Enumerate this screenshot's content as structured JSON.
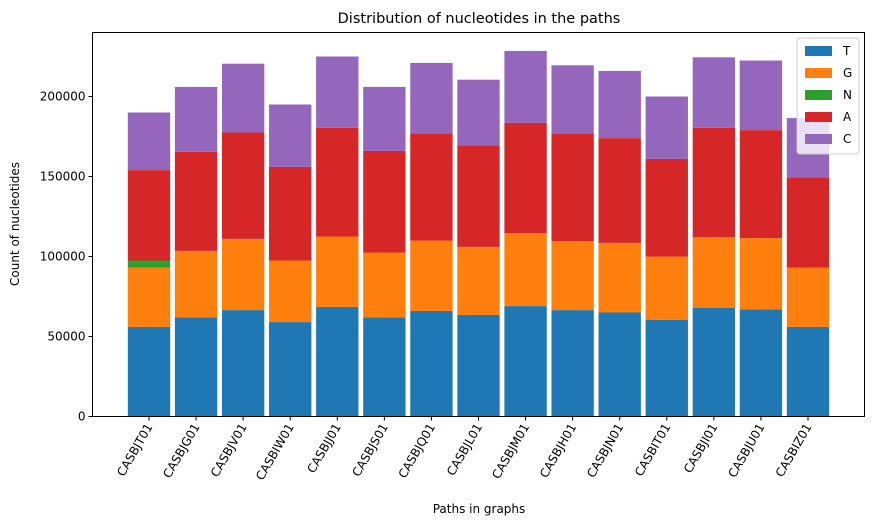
{
  "chart_data": {
    "type": "bar",
    "stacked": true,
    "title": "Distribution of nucleotides in the paths",
    "xlabel": "Paths in graphs",
    "ylabel": "Count of nucleotides",
    "ylim": [
      0,
      240000
    ],
    "yticks": [
      0,
      50000,
      100000,
      150000,
      200000
    ],
    "yticklabels": [
      "0",
      "50000",
      "100000",
      "150000",
      "200000"
    ],
    "grid": false,
    "legend_position": "top-right",
    "categories": [
      "CASBJT01",
      "CASBJG01",
      "CASBJV01",
      "CASBIW01",
      "CASBJJ01",
      "CASBJS01",
      "CASBJQ01",
      "CASBJL01",
      "CASBJM01",
      "CASBJH01",
      "CASBJN01",
      "CASBIT01",
      "CASBJI01",
      "CASBJU01",
      "CASBIZ01"
    ],
    "series": [
      {
        "name": "T",
        "color": "#1f77b4",
        "values": [
          56000,
          62000,
          66500,
          59000,
          68500,
          62000,
          66000,
          63500,
          69000,
          66500,
          65000,
          60500,
          68000,
          67000,
          56000
        ]
      },
      {
        "name": "G",
        "color": "#ff7f0e",
        "values": [
          37000,
          41500,
          44500,
          38500,
          44000,
          40500,
          44000,
          42500,
          45500,
          43000,
          43500,
          39500,
          44000,
          44500,
          37000
        ]
      },
      {
        "name": "N",
        "color": "#2ca02c",
        "values": [
          4500,
          0,
          0,
          0,
          0,
          0,
          0,
          0,
          0,
          0,
          0,
          0,
          0,
          0,
          0
        ]
      },
      {
        "name": "A",
        "color": "#d62728",
        "values": [
          56500,
          62000,
          66500,
          58500,
          68000,
          63500,
          67000,
          63500,
          69000,
          67500,
          65500,
          61000,
          68500,
          67500,
          56500
        ]
      },
      {
        "name": "C",
        "color": "#9467bd",
        "values": [
          36000,
          40500,
          43000,
          39000,
          44500,
          40000,
          44000,
          41000,
          45000,
          42500,
          42000,
          39000,
          44000,
          43500,
          37000
        ]
      }
    ]
  }
}
